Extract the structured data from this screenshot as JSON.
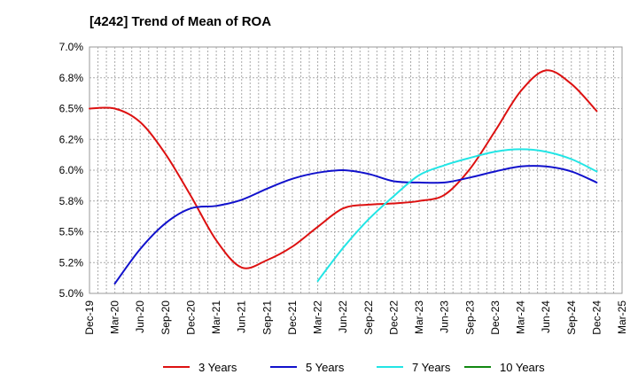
{
  "chart_data": {
    "type": "line",
    "title": "[4242]  Trend of Mean of ROA",
    "xlabel": "",
    "ylabel": "",
    "ylim": [
      5.0,
      7.0
    ],
    "yticks": [
      "5.0%",
      "5.2%",
      "5.5%",
      "5.8%",
      "6.0%",
      "6.2%",
      "6.5%",
      "6.8%",
      "7.0%"
    ],
    "x_tick_labels": [
      "Dec-19",
      "Mar-20",
      "Jun-20",
      "Sep-20",
      "Dec-20",
      "Mar-21",
      "Jun-21",
      "Sep-21",
      "Dec-21",
      "Mar-22",
      "Jun-22",
      "Sep-22",
      "Dec-22",
      "Mar-23",
      "Jun-23",
      "Sep-23",
      "Dec-23",
      "Mar-24",
      "Jun-24",
      "Sep-24",
      "Dec-24",
      "Mar-25"
    ],
    "grid": true,
    "legend_position": "bottom",
    "series": [
      {
        "name": "3 Years",
        "color": "#dd1111",
        "x": [
          "Dec-19",
          "Mar-20",
          "Jun-20",
          "Sep-20",
          "Dec-20",
          "Mar-21",
          "Jun-21",
          "Sep-21",
          "Dec-21",
          "Mar-22",
          "Jun-22",
          "Sep-22",
          "Dec-22",
          "Mar-23",
          "Jun-23",
          "Sep-23",
          "Dec-23",
          "Mar-24",
          "Jun-24",
          "Sep-24",
          "Dec-24"
        ],
        "values": [
          6.5,
          6.5,
          6.39,
          6.13,
          5.79,
          5.43,
          5.21,
          5.27,
          5.38,
          5.54,
          5.69,
          5.72,
          5.73,
          5.75,
          5.8,
          6.01,
          6.32,
          6.64,
          6.81,
          6.7,
          6.48
        ]
      },
      {
        "name": "5 Years",
        "color": "#1111cc",
        "x": [
          "Mar-20",
          "Jun-20",
          "Sep-20",
          "Dec-20",
          "Mar-21",
          "Jun-21",
          "Sep-21",
          "Dec-21",
          "Mar-22",
          "Jun-22",
          "Sep-22",
          "Dec-22",
          "Mar-23",
          "Jun-23",
          "Sep-23",
          "Dec-23",
          "Mar-24",
          "Jun-24",
          "Sep-24",
          "Dec-24"
        ],
        "values": [
          5.08,
          5.36,
          5.57,
          5.69,
          5.71,
          5.76,
          5.85,
          5.93,
          5.98,
          6.0,
          5.97,
          5.91,
          5.9,
          5.9,
          5.94,
          5.99,
          6.03,
          6.03,
          5.99,
          5.9
        ]
      },
      {
        "name": "7 Years",
        "color": "#22e5e5",
        "x": [
          "Mar-22",
          "Jun-22",
          "Sep-22",
          "Dec-22",
          "Mar-23",
          "Jun-23",
          "Sep-23",
          "Dec-23",
          "Mar-24",
          "Jun-24",
          "Sep-24",
          "Dec-24"
        ],
        "values": [
          5.1,
          5.37,
          5.6,
          5.79,
          5.96,
          6.04,
          6.1,
          6.15,
          6.17,
          6.15,
          6.09,
          5.99
        ]
      },
      {
        "name": "10 Years",
        "color": "#118811",
        "x": [],
        "values": []
      }
    ]
  }
}
